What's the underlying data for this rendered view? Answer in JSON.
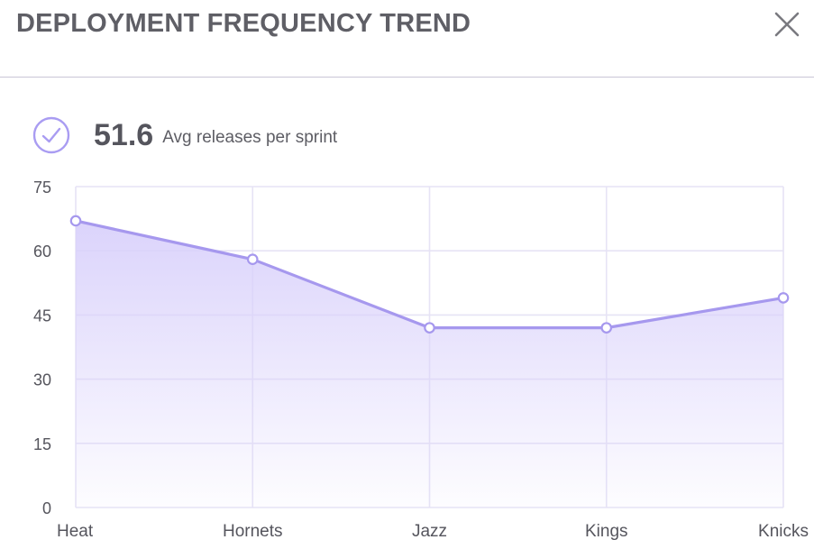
{
  "header": {
    "title": "DEPLOYMENT FREQUENCY TREND",
    "close_icon": "close-icon"
  },
  "kpi": {
    "icon": "check-circle-icon",
    "value": "51.6",
    "label": "Avg releases per sprint"
  },
  "colors": {
    "accent": "#a99cf2",
    "line": "#a698ee",
    "area_top": "#ddd6fb",
    "grid": "#e6e3f5",
    "tick_text": "#55555d"
  },
  "chart_data": {
    "type": "area",
    "categories": [
      "Heat",
      "Hornets",
      "Jazz",
      "Kings",
      "Knicks"
    ],
    "series": [
      {
        "values": [
          67,
          58,
          42,
          42,
          49
        ]
      }
    ],
    "y_ticks": [
      "0",
      "15",
      "30",
      "45",
      "60",
      "75"
    ],
    "ylim": [
      0,
      75
    ],
    "grid": true,
    "title": "",
    "xlabel": "",
    "ylabel": ""
  }
}
